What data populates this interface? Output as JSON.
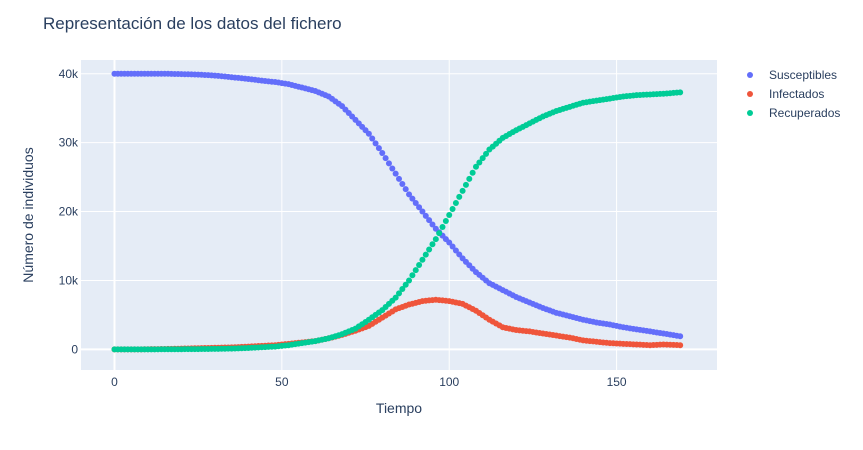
{
  "chart_data": {
    "type": "scatter",
    "title": "Representación de los datos del fichero",
    "xlabel": "Tiempo",
    "ylabel": "Número de individuos",
    "xlim": [
      -10,
      180
    ],
    "ylim": [
      -3000,
      42000
    ],
    "x_ticks": [
      0,
      50,
      100,
      150
    ],
    "y_ticks": [
      0,
      10000,
      20000,
      30000,
      40000
    ],
    "x_tick_labels": [
      "0",
      "50",
      "100",
      "150"
    ],
    "y_tick_labels": [
      "0",
      "10k",
      "20k",
      "30k",
      "40k"
    ],
    "grid": true,
    "legend_position": "top-right",
    "background": "#e5ecf6",
    "x": [
      0,
      4,
      8,
      12,
      16,
      20,
      24,
      28,
      32,
      36,
      40,
      44,
      48,
      52,
      56,
      60,
      64,
      68,
      72,
      76,
      80,
      84,
      88,
      92,
      96,
      100,
      104,
      108,
      112,
      116,
      120,
      124,
      128,
      132,
      136,
      140,
      144,
      148,
      152,
      156,
      160,
      164,
      169
    ],
    "series": [
      {
        "name": "Susceptibles",
        "color": "#636efa",
        "values": [
          40000,
          40000,
          40000,
          40000,
          40000,
          39950,
          39900,
          39800,
          39650,
          39450,
          39250,
          39000,
          38800,
          38500,
          38000,
          37500,
          36700,
          35300,
          33300,
          31300,
          28500,
          25500,
          22500,
          20000,
          17500,
          15500,
          13200,
          11200,
          9600,
          8600,
          7600,
          6800,
          6000,
          5300,
          4800,
          4300,
          3900,
          3600,
          3200,
          2900,
          2600,
          2300,
          1900
        ]
      },
      {
        "name": "Infectados",
        "color": "#ef553b",
        "values": [
          0,
          0,
          0,
          30,
          60,
          100,
          150,
          200,
          250,
          300,
          400,
          500,
          600,
          800,
          1000,
          1200,
          1600,
          2100,
          2700,
          3400,
          4600,
          5800,
          6500,
          7000,
          7200,
          7000,
          6600,
          5600,
          4300,
          3200,
          2800,
          2600,
          2300,
          2000,
          1700,
          1300,
          1100,
          900,
          800,
          700,
          600,
          700,
          600
        ]
      },
      {
        "name": "Recuperados",
        "color": "#00cc96",
        "values": [
          0,
          0,
          0,
          0,
          10,
          20,
          30,
          50,
          80,
          120,
          200,
          300,
          400,
          600,
          900,
          1200,
          1600,
          2200,
          3000,
          4300,
          5700,
          7500,
          10000,
          13000,
          16000,
          19500,
          23000,
          26500,
          29000,
          30700,
          31800,
          32800,
          33800,
          34600,
          35200,
          35800,
          36100,
          36400,
          36700,
          36900,
          37000,
          37100,
          37300
        ]
      }
    ]
  }
}
